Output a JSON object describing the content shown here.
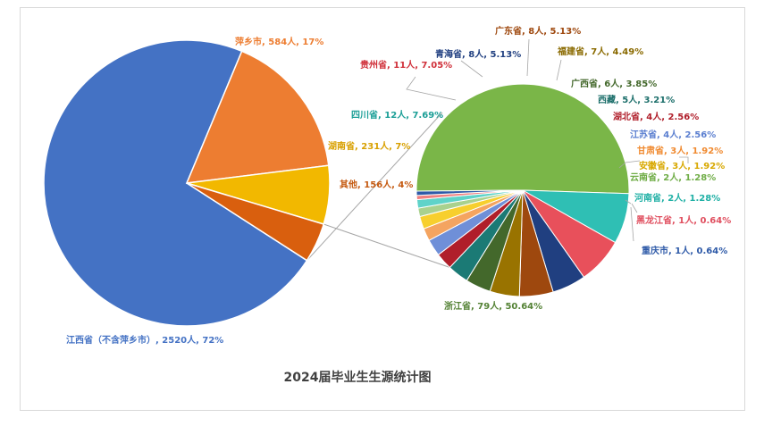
{
  "chart_data": {
    "type": "pie",
    "subtype": "pie-of-pie",
    "title": "2024届毕业生生源统计图",
    "main": {
      "slices": [
        {
          "label": "江西省（不含萍乡市）",
          "value": 2520,
          "percent": "72%",
          "color": "#4472c4",
          "label_color": "#4472c4"
        },
        {
          "label": "萍乡市",
          "value": 584,
          "percent": "17%",
          "color": "#ed7d31",
          "label_color": "#ed7d31"
        },
        {
          "label": "湖南省",
          "value": 231,
          "percent": "7%",
          "color": "#f2b800",
          "label_color": "#d8a000"
        },
        {
          "label": "其他",
          "value": 156,
          "percent": "4%",
          "color": "#d95f0e",
          "label_color": "#c55a11"
        }
      ]
    },
    "secondary": {
      "slices": [
        {
          "label": "浙江省",
          "value": 79,
          "percent": "50.64%",
          "color": "#7ab648",
          "label_color": "#548235"
        },
        {
          "label": "四川省",
          "value": 12,
          "percent": "7.69%",
          "color": "#2fbfb4",
          "label_color": "#1a9e96"
        },
        {
          "label": "贵州省",
          "value": 11,
          "percent": "7.05%",
          "color": "#e8505b",
          "label_color": "#d0303a"
        },
        {
          "label": "青海省",
          "value": 8,
          "percent": "5.13%",
          "color": "#203f80",
          "label_color": "#203f80"
        },
        {
          "label": "广东省",
          "value": 8,
          "percent": "5.13%",
          "color": "#9e480e",
          "label_color": "#9e480e"
        },
        {
          "label": "福建省",
          "value": 7,
          "percent": "4.49%",
          "color": "#997300",
          "label_color": "#8a6a00"
        },
        {
          "label": "广西省",
          "value": 6,
          "percent": "3.85%",
          "color": "#43682b",
          "label_color": "#43682b"
        },
        {
          "label": "西藏",
          "value": 5,
          "percent": "3.21%",
          "color": "#1b7a75",
          "label_color": "#1b6e6a"
        },
        {
          "label": "湖北省",
          "value": 4,
          "percent": "2.56%",
          "color": "#b01e2a",
          "label_color": "#b01e2a"
        },
        {
          "label": "江苏省",
          "value": 4,
          "percent": "2.56%",
          "color": "#6f8fd8",
          "label_color": "#5b7fd0"
        },
        {
          "label": "甘肃省",
          "value": 3,
          "percent": "1.92%",
          "color": "#f4a460",
          "label_color": "#f08a30"
        },
        {
          "label": "安徽省",
          "value": 3,
          "percent": "1.92%",
          "color": "#f7cf2e",
          "label_color": "#d8a800"
        },
        {
          "label": "云南省",
          "value": 2,
          "percent": "1.28%",
          "color": "#a9d18e",
          "label_color": "#70ad47"
        },
        {
          "label": "河南省",
          "value": 2,
          "percent": "1.28%",
          "color": "#5fd3c9",
          "label_color": "#1fb0a5"
        },
        {
          "label": "黑龙江省",
          "value": 1,
          "percent": "0.64%",
          "color": "#f08080",
          "label_color": "#e05060"
        },
        {
          "label": "重庆市",
          "value": 1,
          "percent": "0.64%",
          "color": "#2e5aa8",
          "label_color": "#2e5aa8"
        }
      ]
    },
    "unit": "人"
  }
}
